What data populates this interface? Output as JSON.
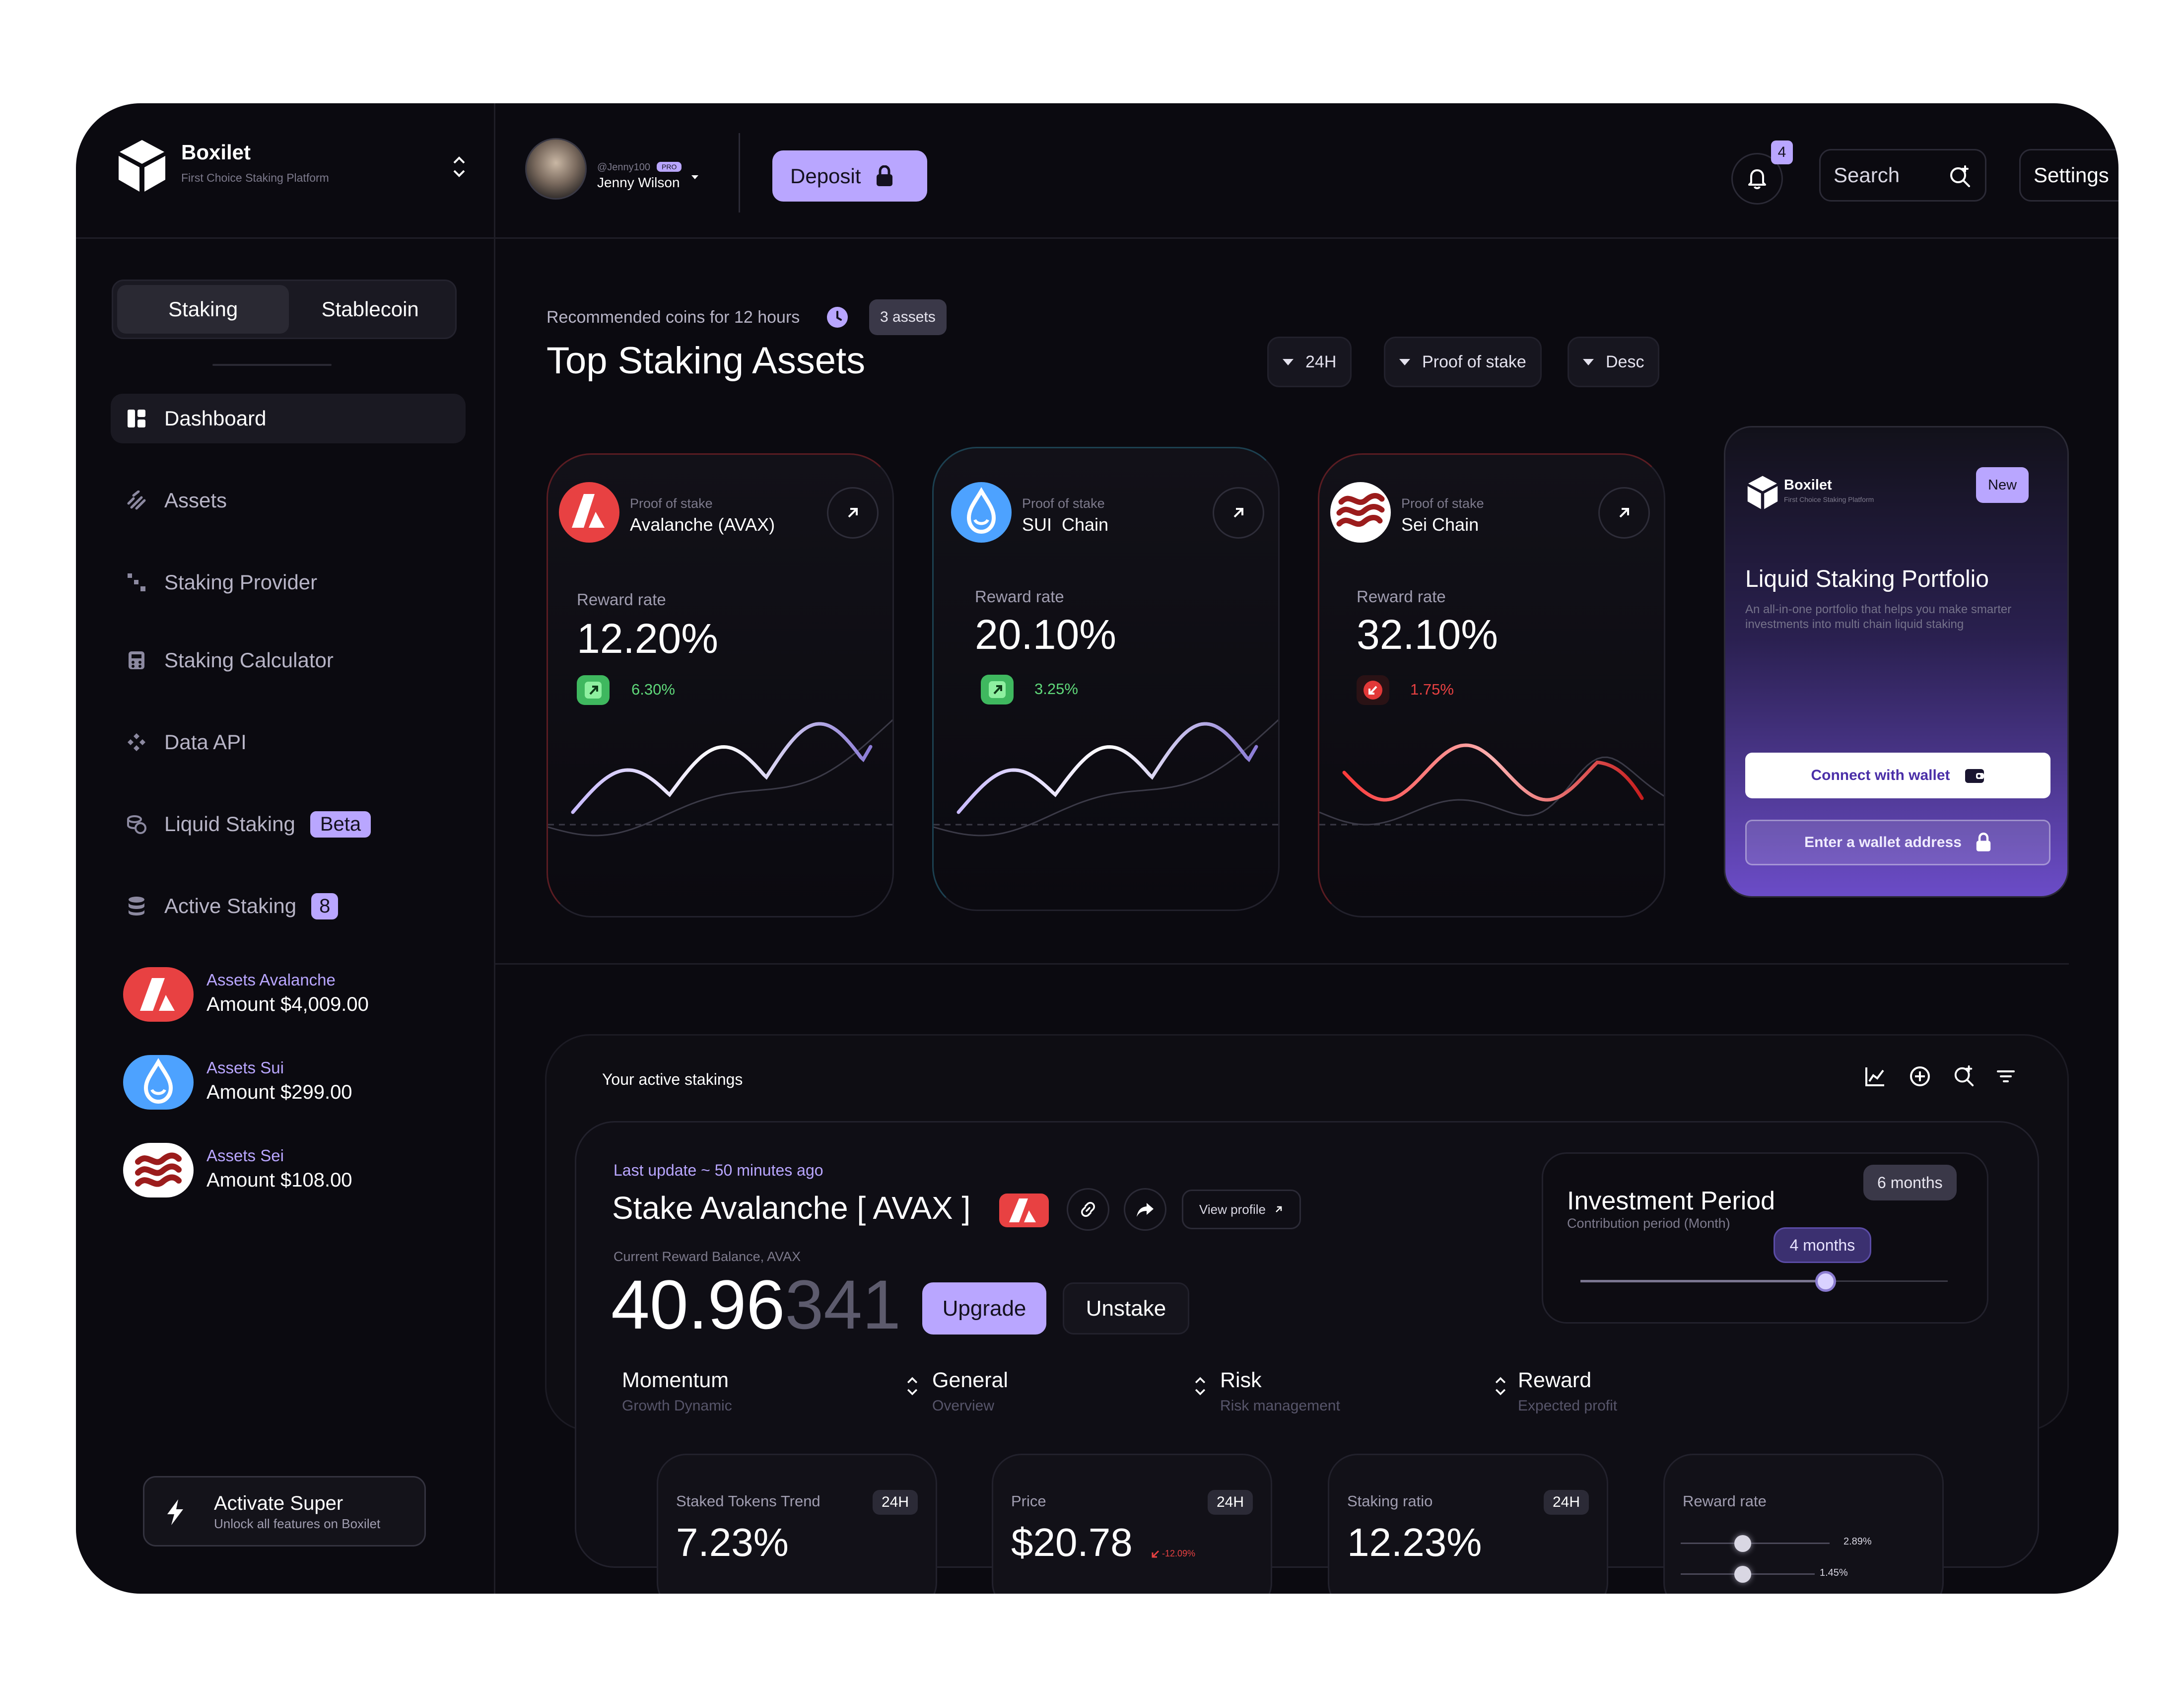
{
  "brand": {
    "name": "Boxilet",
    "tagline": "First Choice Staking Platform"
  },
  "user": {
    "handle": "@Jenny100",
    "badge": "PRO",
    "name": "Jenny Wilson"
  },
  "header": {
    "deposit_label": "Deposit",
    "notification_count": "4",
    "search_placeholder": "Search",
    "settings_label": "Settings"
  },
  "sidebar": {
    "tabs": [
      {
        "label": "Staking"
      },
      {
        "label": "Stablecoin"
      }
    ],
    "nav": [
      {
        "label": "Dashboard",
        "icon": "dashboard-icon"
      },
      {
        "label": "Assets",
        "icon": "assets-icon"
      },
      {
        "label": "Staking Provider",
        "icon": "provider-icon"
      },
      {
        "label": "Staking Calculator",
        "icon": "calculator-icon"
      },
      {
        "label": "Data API",
        "icon": "api-icon"
      },
      {
        "label": "Liquid Staking",
        "icon": "liquid-icon",
        "badge": "Beta"
      },
      {
        "label": "Active Staking",
        "icon": "database-icon",
        "badge": "8"
      }
    ],
    "assets": [
      {
        "title": "Assets Avalanche",
        "amount": "Amount $4,009.00"
      },
      {
        "title": "Assets Sui",
        "amount": "Amount $299.00"
      },
      {
        "title": "Assets Sei",
        "amount": "Amount $108.00"
      }
    ],
    "cta": {
      "title": "Activate Super",
      "subtitle": "Unlock all features on Boxilet"
    }
  },
  "top": {
    "recommend": "Recommended coins for 12 hours",
    "assets_badge": "3 assets",
    "title": "Top Staking Assets",
    "filters": [
      "24H",
      "Proof of stake",
      "Desc"
    ]
  },
  "coins": [
    {
      "type": "Proof of stake",
      "name": "Avalanche (AVAX)",
      "reward_label": "Reward rate",
      "rate": "12.20%",
      "change": "6.30%",
      "trend": "up",
      "color": "#b9a6ff"
    },
    {
      "type": "Proof of stake",
      "name": "SUI  Chain",
      "reward_label": "Reward rate",
      "rate": "20.10%",
      "change": "3.25%",
      "trend": "up",
      "color": "#c9bbff"
    },
    {
      "type": "Proof of stake",
      "name": "Sei Chain",
      "reward_label": "Reward rate",
      "rate": "32.10%",
      "change": "1.75%",
      "trend": "down",
      "color": "#ff4d4d"
    }
  ],
  "promo": {
    "brand": "Boxilet",
    "tagline": "First Choice Staking Platform",
    "badge": "New",
    "title": "Liquid Staking Portfolio",
    "desc": "An all-in-one portfolio that helps you make smarter investments into multi chain liquid staking",
    "connect": "Connect with wallet",
    "enter": "Enter a wallet address"
  },
  "active": {
    "title": "Your active stakings",
    "last_update": "Last update ~ 50 minutes ago",
    "stake_title": "Stake Avalanche [ AVAX ]",
    "view_profile": "View profile",
    "balance_label": "Current Reward Balance, AVAX",
    "balance_main": "40.96",
    "balance_tail": "341",
    "upgrade": "Upgrade",
    "unstake": "Unstake",
    "period": {
      "title": "Investment Period",
      "subtitle": "Contribution period (Month)",
      "max": "6 months",
      "value": "4 months",
      "fraction": 0.667
    },
    "metrics": [
      {
        "title": "Momentum",
        "sub": "Growth Dynamic"
      },
      {
        "title": "General",
        "sub": "Overview"
      },
      {
        "title": "Risk",
        "sub": "Risk management"
      },
      {
        "title": "Reward",
        "sub": "Expected profit"
      }
    ]
  },
  "stats": [
    {
      "label": "Staked Tokens Trend",
      "tag": "24H",
      "value": "7.23%"
    },
    {
      "label": "Price",
      "tag": "24H",
      "value": "$20.78",
      "change": "-12.09%"
    },
    {
      "label": "Staking ratio",
      "tag": "24H",
      "value": "12.23%"
    },
    {
      "label": "Reward rate",
      "r1": "2.89%",
      "r2": "1.45%"
    }
  ]
}
